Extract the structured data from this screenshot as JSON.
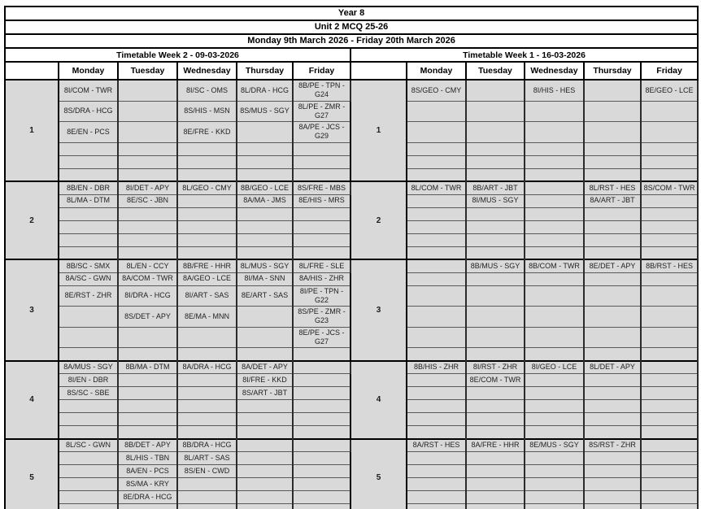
{
  "header": {
    "title": "Year 8",
    "subtitle": "Unit 2 MCQ 25-26",
    "date_range": "Monday 9th March 2026 - Friday 20th March 2026"
  },
  "day_headers": [
    "Monday",
    "Tuesday",
    "Wednesday",
    "Thursday",
    "Friday"
  ],
  "colors": {
    "cell_background": "#d9d9d9",
    "header_background": "#ffffff",
    "border_thick": "#000000",
    "border_thin": "#5a5a5a",
    "cell_text": "#211e1e"
  },
  "timetables": [
    {
      "title": "Timetable Week 2 - 09-03-2026",
      "periods": [
        {
          "label": "1",
          "rows": [
            [
              "8I/COM - TWR",
              "",
              "8I/SC - OMS",
              "8L/DRA - HCG",
              "8B/PE - TPN - G24"
            ],
            [
              "8S/DRA - HCG",
              "",
              "8S/HIS - MSN",
              "8S/MUS - SGY",
              "8L/PE - ZMR - G27"
            ],
            [
              "8E/EN - PCS",
              "",
              "8E/FRE - KKD",
              "",
              "8A/PE - JCS - G29"
            ],
            [
              "",
              "",
              "",
              "",
              ""
            ],
            [
              "",
              "",
              "",
              "",
              ""
            ],
            [
              "",
              "",
              "",
              "",
              ""
            ]
          ]
        },
        {
          "label": "2",
          "rows": [
            [
              "8B/EN - DBR",
              "8I/DET - APY",
              "8L/GEO - CMY",
              "8B/GEO - LCE",
              "8S/FRE - MBS"
            ],
            [
              "8L/MA - DTM",
              "8E/SC - JBN",
              "",
              "8A/MA - JMS",
              "8E/HIS - MRS"
            ],
            [
              "",
              "",
              "",
              "",
              ""
            ],
            [
              "",
              "",
              "",
              "",
              ""
            ],
            [
              "",
              "",
              "",
              "",
              ""
            ],
            [
              "",
              "",
              "",
              "",
              ""
            ]
          ]
        },
        {
          "label": "3",
          "rows": [
            [
              "8B/SC - SMX",
              "8L/EN - CCY",
              "8B/FRE - HHR",
              "8L/MUS - SGY",
              "8L/FRE - SLE"
            ],
            [
              "8A/SC - GWN",
              "8A/COM - TWR",
              "8A/GEO - LCE",
              "8I/MA - SNN",
              "8A/HIS - ZHR"
            ],
            [
              "8E/RST - ZHR",
              "8I/DRA - HCG",
              "8I/ART - SAS",
              "8E/ART - SAS",
              "8I/PE - TPN - G22"
            ],
            [
              "",
              "8S/DET - APY",
              "8E/MA - MNN",
              "",
              "8S/PE - ZMR - G23"
            ],
            [
              "",
              "",
              "",
              "",
              "8E/PE - JCS - G27"
            ],
            [
              "",
              "",
              "",
              "",
              ""
            ]
          ]
        },
        {
          "label": "4",
          "rows": [
            [
              "8A/MUS - SGY",
              "8B/MA - DTM",
              "8A/DRA - HCG",
              "8A/DET - APY",
              ""
            ],
            [
              "8I/EN - DBR",
              "",
              "",
              "8I/FRE - KKD",
              ""
            ],
            [
              "8S/SC - SBE",
              "",
              "",
              "8S/ART - JBT",
              ""
            ],
            [
              "",
              "",
              "",
              "",
              ""
            ],
            [
              "",
              "",
              "",
              "",
              ""
            ],
            [
              "",
              "",
              "",
              "",
              ""
            ]
          ]
        },
        {
          "label": "5",
          "rows": [
            [
              "8L/SC - GWN",
              "8B/DET - APY",
              "8B/DRA - HCG",
              "",
              ""
            ],
            [
              "",
              "8L/HIS - TBN",
              "8L/ART - SAS",
              "",
              ""
            ],
            [
              "",
              "8A/EN - PCS",
              "8S/EN - CWD",
              "",
              ""
            ],
            [
              "",
              "8S/MA - KRY",
              "",
              "",
              ""
            ],
            [
              "",
              "8E/DRA - HCG",
              "",
              "",
              ""
            ],
            [
              "",
              "",
              "",
              "",
              ""
            ]
          ]
        }
      ]
    },
    {
      "title": "Timetable Week 1 - 16-03-2026",
      "periods": [
        {
          "label": "1",
          "rows": [
            [
              "8S/GEO - CMY",
              "",
              "8I/HIS - HES",
              "",
              "8E/GEO - LCE"
            ],
            [
              "",
              "",
              "",
              "",
              ""
            ],
            [
              "",
              "",
              "",
              "",
              ""
            ],
            [
              "",
              "",
              "",
              "",
              ""
            ],
            [
              "",
              "",
              "",
              "",
              ""
            ],
            [
              "",
              "",
              "",
              "",
              ""
            ]
          ]
        },
        {
          "label": "2",
          "rows": [
            [
              "8L/COM - TWR",
              "8B/ART - JBT",
              "",
              "8L/RST - HES",
              "8S/COM - TWR"
            ],
            [
              "",
              "8I/MUS - SGY",
              "",
              "8A/ART - JBT",
              ""
            ],
            [
              "",
              "",
              "",
              "",
              ""
            ],
            [
              "",
              "",
              "",
              "",
              ""
            ],
            [
              "",
              "",
              "",
              "",
              ""
            ],
            [
              "",
              "",
              "",
              "",
              ""
            ]
          ]
        },
        {
          "label": "3",
          "rows": [
            [
              "",
              "8B/MUS - SGY",
              "8B/COM - TWR",
              "8E/DET - APY",
              "8B/RST - HES"
            ],
            [
              "",
              "",
              "",
              "",
              ""
            ],
            [
              "",
              "",
              "",
              "",
              ""
            ],
            [
              "",
              "",
              "",
              "",
              ""
            ],
            [
              "",
              "",
              "",
              "",
              ""
            ],
            [
              "",
              "",
              "",
              "",
              ""
            ]
          ]
        },
        {
          "label": "4",
          "rows": [
            [
              "8B/HIS - ZHR",
              "8I/RST - ZHR",
              "8I/GEO - LCE",
              "8L/DET - APY",
              ""
            ],
            [
              "",
              "8E/COM - TWR",
              "",
              "",
              ""
            ],
            [
              "",
              "",
              "",
              "",
              ""
            ],
            [
              "",
              "",
              "",
              "",
              ""
            ],
            [
              "",
              "",
              "",
              "",
              ""
            ],
            [
              "",
              "",
              "",
              "",
              ""
            ]
          ]
        },
        {
          "label": "5",
          "rows": [
            [
              "8A/RST - HES",
              "8A/FRE - HHR",
              "8E/MUS - SGY",
              "8S/RST - ZHR",
              ""
            ],
            [
              "",
              "",
              "",
              "",
              ""
            ],
            [
              "",
              "",
              "",
              "",
              ""
            ],
            [
              "",
              "",
              "",
              "",
              ""
            ],
            [
              "",
              "",
              "",
              "",
              ""
            ],
            [
              "",
              "",
              "",
              "",
              ""
            ]
          ]
        }
      ]
    }
  ]
}
